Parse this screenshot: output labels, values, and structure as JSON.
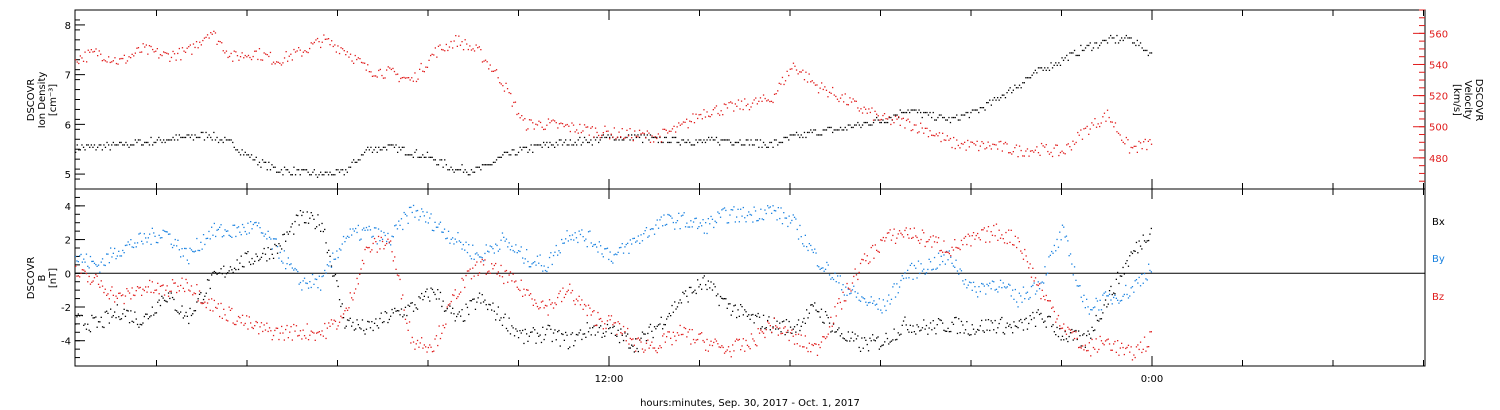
{
  "chart_data": [
    {
      "type": "scatter",
      "panel": "density-velocity",
      "ylabel": [
        "DSCOVR",
        "Ion Density",
        "[cm⁻³]"
      ],
      "ylabel_right": [
        "DSCOVR",
        "Velocity",
        "[km/s]"
      ],
      "ylim": [
        4.7,
        8.3
      ],
      "yticks": [
        5,
        6,
        7,
        8
      ],
      "ylim_right": [
        460,
        575
      ],
      "yticks_right": [
        480,
        500,
        520,
        540,
        560
      ],
      "colors": {
        "density": "#000000",
        "velocity": "#e01c1c"
      },
      "series": [
        {
          "key": "density",
          "axis": "left",
          "x": [
            0,
            0.5,
            1,
            1.5,
            2,
            2.5,
            3,
            3.5,
            4,
            4.5,
            5,
            5.5,
            6,
            6.5,
            7,
            7.5,
            8,
            8.5,
            9,
            9.5,
            10,
            10.5,
            11,
            11.5,
            12,
            12.5,
            13,
            13.5,
            14,
            14.5,
            15,
            15.5,
            16,
            16.5,
            17,
            17.5,
            18,
            18.5,
            19,
            19.5,
            20,
            20.5,
            21,
            21.5,
            22,
            22.5,
            23,
            23.5,
            24
          ],
          "y": [
            5.55,
            5.55,
            5.6,
            5.65,
            5.7,
            5.75,
            5.8,
            5.6,
            5.3,
            5.1,
            5.05,
            5.0,
            5.05,
            5.5,
            5.55,
            5.45,
            5.3,
            5.1,
            5.1,
            5.35,
            5.5,
            5.6,
            5.65,
            5.7,
            5.75,
            5.75,
            5.7,
            5.7,
            5.65,
            5.7,
            5.65,
            5.6,
            5.75,
            5.85,
            5.9,
            6.0,
            6.1,
            6.3,
            6.2,
            6.1,
            6.25,
            6.5,
            6.8,
            7.1,
            7.3,
            7.55,
            7.7,
            7.75,
            7.4
          ]
        },
        {
          "key": "velocity",
          "axis": "right",
          "x": [
            0,
            0.5,
            1,
            1.5,
            2,
            2.5,
            3,
            3.5,
            4,
            4.5,
            5,
            5.5,
            6,
            6.5,
            7,
            7.5,
            8,
            8.5,
            9,
            9.5,
            10,
            10.5,
            11,
            11.5,
            12,
            12.5,
            13,
            13.5,
            14,
            14.5,
            15,
            15.5,
            16,
            16.5,
            17,
            17.5,
            18,
            18.5,
            19,
            19.5,
            20,
            20.5,
            21,
            21.5,
            22,
            22.5,
            23,
            23.5,
            24
          ],
          "y": [
            544,
            548,
            542,
            550,
            546,
            548,
            562,
            545,
            548,
            543,
            548,
            556,
            550,
            537,
            535,
            530,
            548,
            556,
            548,
            530,
            502,
            502,
            500,
            498,
            496,
            495,
            494,
            500,
            510,
            512,
            515,
            518,
            540,
            527,
            520,
            512,
            505,
            503,
            498,
            490,
            488,
            488,
            485,
            486,
            484,
            498,
            508,
            486,
            490
          ]
        }
      ]
    },
    {
      "type": "scatter",
      "panel": "magnetic-field",
      "ylabel": [
        "DSCOVR",
        "B",
        "[nT]"
      ],
      "ylim": [
        -5.5,
        5.0
      ],
      "yticks": [
        -4,
        -2,
        0,
        2,
        4
      ],
      "xlabel": "hours:minutes, Sep. 30, 2017 - Oct.  1, 2017",
      "x_tick_labels": [
        {
          "hour": 12,
          "text": "12:00"
        },
        {
          "hour": 24,
          "text": "0:00"
        }
      ],
      "colors": {
        "bx": "#000000",
        "by": "#1a82e0",
        "bz": "#e01c1c"
      },
      "series": [
        {
          "key": "bx",
          "name": "Bx",
          "x": [
            0,
            0.5,
            1,
            1.5,
            2,
            2.5,
            3,
            3.5,
            4,
            4.5,
            5,
            5.5,
            6,
            6.5,
            7,
            7.5,
            8,
            8.5,
            9,
            9.5,
            10,
            10.5,
            11,
            11.5,
            12,
            12.5,
            13,
            13.5,
            14,
            14.5,
            15,
            15.5,
            16,
            16.5,
            17,
            17.5,
            18,
            18.5,
            19,
            19.5,
            20,
            20.5,
            21,
            21.5,
            22,
            22.5,
            23,
            23.5,
            24
          ],
          "y": [
            -2.8,
            -3.0,
            -2.2,
            -2.8,
            -1.2,
            -2.6,
            -0.5,
            0.5,
            1.0,
            1.5,
            3.3,
            3.0,
            -2.8,
            -3.3,
            -2.5,
            -2.0,
            -1.0,
            -2.8,
            -1.5,
            -2.6,
            -3.8,
            -3.5,
            -4.0,
            -3.2,
            -3.5,
            -4.2,
            -3.0,
            -1.5,
            -0.5,
            -1.8,
            -2.6,
            -3.0,
            -3.2,
            -2.0,
            -3.5,
            -4.2,
            -4.0,
            -3.0,
            -3.2,
            -3.0,
            -3.2,
            -3.0,
            -3.2,
            -2.5,
            -3.6,
            -4.0,
            -1.5,
            1.0,
            2.8
          ]
        },
        {
          "key": "by",
          "name": "By",
          "x": [
            0,
            0.5,
            1,
            1.5,
            2,
            2.5,
            3,
            3.5,
            4,
            4.5,
            5,
            5.5,
            6,
            6.5,
            7,
            7.5,
            8,
            8.5,
            9,
            9.5,
            10,
            10.5,
            11,
            11.5,
            12,
            12.5,
            13,
            13.5,
            14,
            14.5,
            15,
            15.5,
            16,
            16.5,
            17,
            17.5,
            18,
            18.5,
            19,
            19.5,
            20,
            20.5,
            21,
            21.5,
            22,
            22.5,
            23,
            23.5,
            24
          ],
          "y": [
            1.0,
            0.5,
            1.5,
            2.0,
            2.5,
            1.0,
            2.5,
            2.5,
            2.8,
            1.5,
            -0.5,
            -0.5,
            2.2,
            2.5,
            2.0,
            3.8,
            3.0,
            2.0,
            1.0,
            2.0,
            1.0,
            0.5,
            2.5,
            2.0,
            1.0,
            2.0,
            3.0,
            3.2,
            2.8,
            3.5,
            3.5,
            3.8,
            3.0,
            1.0,
            -0.5,
            -1.5,
            -2.0,
            0.0,
            0.5,
            1.0,
            -1.0,
            -0.5,
            -1.5,
            -0.5,
            2.5,
            -2.0,
            -1.5,
            -1.0,
            0.5
          ]
        },
        {
          "key": "bz",
          "name": "Bz",
          "x": [
            0,
            0.5,
            1,
            1.5,
            2,
            2.5,
            3,
            3.5,
            4,
            4.5,
            5,
            5.5,
            6,
            6.5,
            7,
            7.5,
            8,
            8.5,
            9,
            9.5,
            10,
            10.5,
            11,
            11.5,
            12,
            12.5,
            13,
            13.5,
            14,
            14.5,
            15,
            15.5,
            16,
            16.5,
            17,
            17.5,
            18,
            18.5,
            19,
            19.5,
            20,
            20.5,
            21,
            21.5,
            22,
            22.5,
            23,
            23.5,
            24
          ],
          "y": [
            0.0,
            -0.5,
            -1.5,
            -0.8,
            -1.0,
            -0.5,
            -1.8,
            -2.5,
            -3.2,
            -3.5,
            -3.4,
            -3.5,
            -2.5,
            1.5,
            2.0,
            -4.0,
            -4.2,
            -1.0,
            0.5,
            0.0,
            -1.0,
            -2.0,
            -1.0,
            -2.5,
            -3.0,
            -4.2,
            -4.2,
            -3.5,
            -4.0,
            -4.5,
            -4.2,
            -3.0,
            -3.8,
            -4.5,
            -2.0,
            0.5,
            2.0,
            2.5,
            2.0,
            1.5,
            2.0,
            2.5,
            2.0,
            -1.0,
            -3.0,
            -4.5,
            -4.0,
            -4.8,
            -3.8
          ]
        }
      ]
    }
  ]
}
